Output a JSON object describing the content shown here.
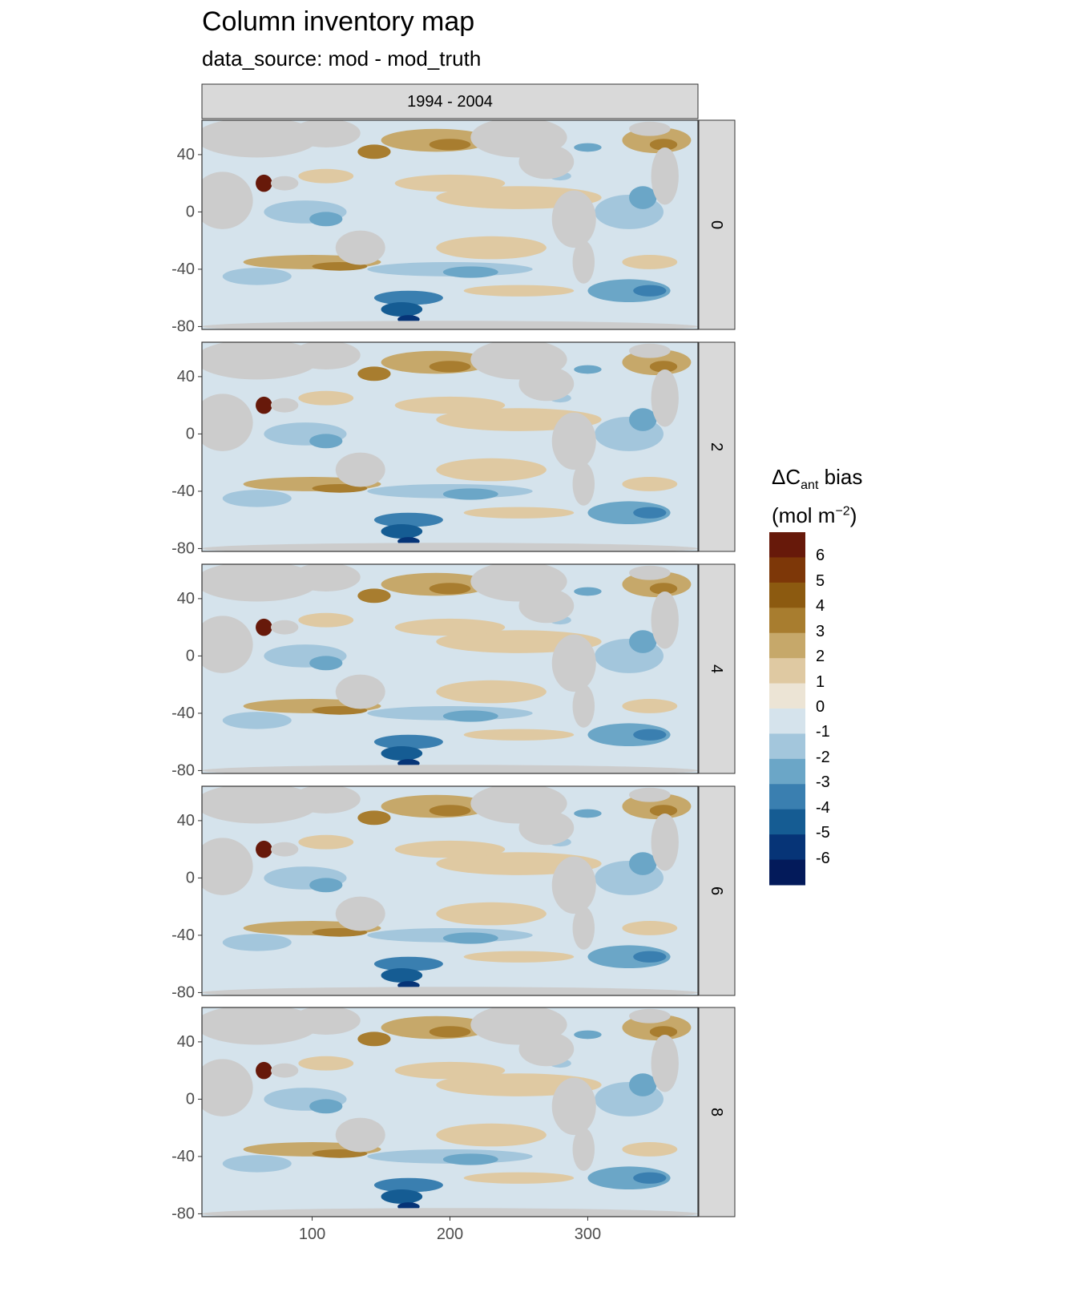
{
  "title": "Column inventory map",
  "subtitle": "data_source: mod - mod_truth",
  "chart_data": {
    "type": "heatmap",
    "title": "Column inventory map",
    "subtitle": "data_source: mod - mod_truth",
    "column_strip": "1994 - 2004",
    "panels": [
      "0",
      "2",
      "4",
      "6",
      "8"
    ],
    "x_ticks": [
      100,
      200,
      300
    ],
    "y_ticks": [
      40,
      0,
      -40,
      -80
    ],
    "xlim": [
      20,
      380
    ],
    "ylim": [
      -82,
      64
    ],
    "legend": {
      "title_main": "ΔC",
      "title_sub": "ant",
      "title_rest": " bias",
      "unit_prefix": "(mol m",
      "unit_sup": "−2",
      "unit_suffix": ")",
      "labels": [
        "6",
        "5",
        "4",
        "3",
        "2",
        "1",
        "0",
        "-1",
        "-2",
        "-3",
        "-4",
        "-5",
        "-6"
      ],
      "colors": [
        "#67190a",
        "#7d3708",
        "#8c5a10",
        "#a87d2f",
        "#c6a86a",
        "#dfc9a2",
        "#ece4d5",
        "#d5e3ec",
        "#a3c6dc",
        "#6ba6c7",
        "#3a7fb0",
        "#155c93",
        "#063477",
        "#031a5a"
      ]
    },
    "colors": {
      "land": "#cccccc",
      "panel_border": "#333333",
      "strip_fill": "#d9d9d9"
    }
  }
}
